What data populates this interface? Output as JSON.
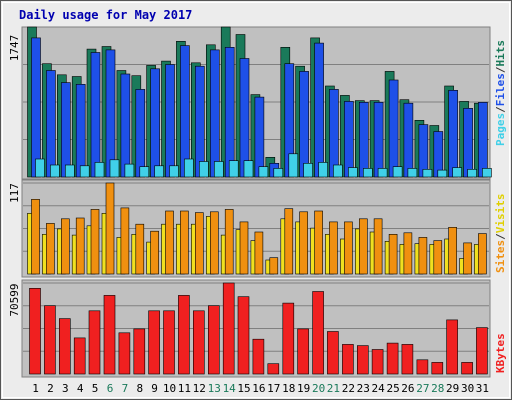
{
  "chart_data": [
    {
      "type": "bar",
      "title": "Daily usage for May 2017",
      "categories": [
        "1",
        "2",
        "3",
        "4",
        "5",
        "6",
        "7",
        "8",
        "9",
        "10",
        "11",
        "12",
        "13",
        "14",
        "15",
        "16",
        "17",
        "18",
        "19",
        "20",
        "21",
        "22",
        "23",
        "24",
        "25",
        "26",
        "27",
        "28",
        "29",
        "30",
        "31"
      ],
      "weekend_days": [
        "6",
        "7",
        "13",
        "14",
        "20",
        "21",
        "27",
        "28"
      ],
      "y_max_label": "1747",
      "ylim": [
        0,
        1747
      ],
      "axis_legend": [
        "Pages",
        "Files",
        "Hits"
      ],
      "series": [
        {
          "name": "Hits",
          "color": "#1a7a5a",
          "values": [
            1747,
            1320,
            1190,
            1170,
            1490,
            1520,
            1240,
            1180,
            1300,
            1350,
            1580,
            1330,
            1540,
            1747,
            1660,
            960,
            230,
            1510,
            1290,
            1620,
            1060,
            950,
            890,
            890,
            1230,
            900,
            660,
            600,
            1060,
            880,
            860
          ]
        },
        {
          "name": "Files",
          "color": "#1e50e8",
          "values": [
            1620,
            1240,
            1100,
            1080,
            1450,
            1480,
            1200,
            1020,
            1260,
            1310,
            1530,
            1290,
            1480,
            1510,
            1380,
            930,
            160,
            1320,
            1230,
            1560,
            1020,
            880,
            870,
            870,
            1130,
            860,
            610,
            530,
            1010,
            800,
            870
          ]
        },
        {
          "name": "Pages",
          "color": "#40d0e8",
          "values": [
            210,
            140,
            140,
            130,
            170,
            200,
            150,
            120,
            130,
            130,
            210,
            180,
            180,
            190,
            190,
            120,
            100,
            270,
            160,
            170,
            140,
            110,
            100,
            100,
            120,
            100,
            90,
            80,
            110,
            90,
            100
          ]
        }
      ]
    },
    {
      "type": "bar",
      "y_max_label": "117",
      "ylim": [
        0,
        117
      ],
      "axis_legend": [
        "Sites",
        "Visits"
      ],
      "series": [
        {
          "name": "Visits",
          "color": "#f0e020",
          "values": [
            78,
            51,
            58,
            50,
            62,
            78,
            47,
            51,
            41,
            64,
            64,
            64,
            74,
            50,
            57,
            43,
            18,
            71,
            67,
            59,
            51,
            45,
            58,
            54,
            42,
            38,
            39,
            38,
            45,
            20,
            38
          ]
        },
        {
          "name": "Sites",
          "color": "#f09010",
          "values": [
            96,
            65,
            71,
            72,
            83,
            117,
            85,
            64,
            55,
            81,
            81,
            79,
            80,
            83,
            67,
            54,
            21,
            84,
            80,
            81,
            67,
            67,
            71,
            71,
            51,
            53,
            47,
            43,
            60,
            40,
            52
          ]
        }
      ]
    },
    {
      "type": "bar",
      "y_max_label": "70599",
      "ylim": [
        0,
        70599
      ],
      "axis_legend": [
        "KBytes"
      ],
      "series": [
        {
          "name": "KBytes",
          "color": "#f02020",
          "values": [
            66500,
            53000,
            43000,
            28000,
            49000,
            61000,
            32000,
            35000,
            49000,
            49000,
            61000,
            49000,
            53000,
            70599,
            60000,
            27000,
            8000,
            55000,
            35000,
            64000,
            33000,
            23000,
            22000,
            19000,
            24000,
            23000,
            11000,
            9000,
            42000,
            9000,
            36000
          ]
        }
      ]
    }
  ]
}
